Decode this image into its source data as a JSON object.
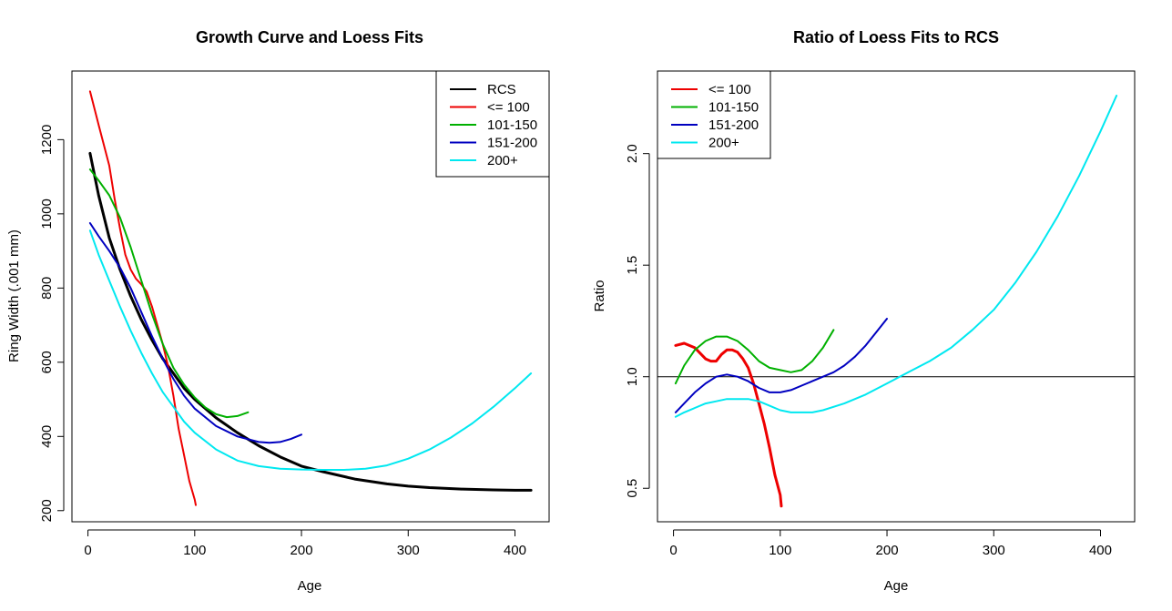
{
  "chart_data": [
    {
      "type": "line",
      "title": "Growth Curve and Loess Fits",
      "xlabel": "Age",
      "ylabel": "Ring Width (.001 mm)",
      "xlim": [
        -15,
        432
      ],
      "ylim": [
        170,
        1385
      ],
      "xticks": [
        0,
        100,
        200,
        300,
        400
      ],
      "yticks": [
        200,
        400,
        600,
        800,
        1000,
        1200
      ],
      "legend": "top-right",
      "series": [
        {
          "name": "RCS",
          "color": "#000000",
          "width": 3,
          "x": [
            2,
            10,
            20,
            30,
            40,
            50,
            60,
            70,
            80,
            90,
            100,
            120,
            140,
            160,
            180,
            200,
            220,
            250,
            280,
            300,
            320,
            350,
            380,
            400,
            415
          ],
          "y": [
            1163,
            1050,
            935,
            850,
            778,
            715,
            660,
            610,
            570,
            530,
            500,
            450,
            410,
            375,
            345,
            320,
            305,
            285,
            272,
            266,
            262,
            258,
            256,
            255,
            255
          ]
        },
        {
          "name": "<= 100",
          "color": "#ee0000",
          "width": 2,
          "x": [
            2,
            10,
            20,
            25,
            30,
            35,
            40,
            45,
            50,
            55,
            60,
            65,
            70,
            75,
            80,
            85,
            90,
            95,
            100,
            101
          ],
          "y": [
            1330,
            1240,
            1130,
            1040,
            960,
            890,
            850,
            825,
            810,
            790,
            750,
            700,
            650,
            590,
            510,
            420,
            350,
            280,
            230,
            215
          ]
        },
        {
          "name": "101-150",
          "color": "#00b000",
          "width": 2,
          "x": [
            2,
            10,
            20,
            30,
            40,
            50,
            60,
            70,
            80,
            90,
            100,
            110,
            120,
            130,
            140,
            150
          ],
          "y": [
            1120,
            1090,
            1050,
            990,
            910,
            820,
            730,
            650,
            585,
            540,
            505,
            478,
            460,
            452,
            455,
            465
          ]
        },
        {
          "name": "151-200",
          "color": "#0000c0",
          "width": 2,
          "x": [
            2,
            10,
            20,
            30,
            40,
            50,
            60,
            70,
            80,
            90,
            100,
            120,
            140,
            160,
            170,
            180,
            190,
            200
          ],
          "y": [
            975,
            940,
            900,
            855,
            800,
            735,
            670,
            610,
            555,
            510,
            475,
            428,
            400,
            385,
            383,
            385,
            393,
            405
          ]
        },
        {
          "name": "200+",
          "color": "#00e8f0",
          "width": 2,
          "x": [
            2,
            10,
            20,
            30,
            40,
            50,
            60,
            70,
            80,
            90,
            100,
            120,
            140,
            160,
            180,
            200,
            220,
            240,
            260,
            280,
            300,
            320,
            340,
            360,
            380,
            400,
            415
          ],
          "y": [
            955,
            890,
            820,
            750,
            685,
            625,
            570,
            520,
            480,
            440,
            410,
            365,
            335,
            320,
            313,
            311,
            310,
            310,
            313,
            322,
            340,
            365,
            397,
            435,
            480,
            530,
            570
          ]
        }
      ]
    },
    {
      "type": "line",
      "title": "Ratio of Loess Fits to RCS",
      "xlabel": "Age",
      "ylabel": "Ratio",
      "xlim": [
        -15,
        432
      ],
      "ylim": [
        0.35,
        2.37
      ],
      "xticks": [
        0,
        100,
        200,
        300,
        400
      ],
      "yticks": [
        0.5,
        1.0,
        1.5,
        2.0
      ],
      "ytick_labels": [
        "0.5",
        "1.0",
        "1.5",
        "2.0"
      ],
      "hline": 1.0,
      "legend": "top-left",
      "series": [
        {
          "name": "<= 100",
          "color": "#ee0000",
          "width": 3,
          "x": [
            2,
            10,
            20,
            30,
            35,
            40,
            45,
            50,
            55,
            60,
            65,
            70,
            75,
            80,
            85,
            90,
            95,
            100,
            101
          ],
          "y": [
            1.14,
            1.15,
            1.13,
            1.08,
            1.07,
            1.07,
            1.1,
            1.12,
            1.12,
            1.11,
            1.08,
            1.04,
            0.97,
            0.88,
            0.79,
            0.68,
            0.56,
            0.47,
            0.42
          ]
        },
        {
          "name": "101-150",
          "color": "#00b000",
          "width": 2,
          "x": [
            2,
            10,
            20,
            30,
            40,
            50,
            60,
            70,
            80,
            90,
            100,
            110,
            120,
            130,
            140,
            150
          ],
          "y": [
            0.97,
            1.05,
            1.12,
            1.16,
            1.18,
            1.18,
            1.16,
            1.12,
            1.07,
            1.04,
            1.03,
            1.02,
            1.03,
            1.07,
            1.13,
            1.21
          ]
        },
        {
          "name": "151-200",
          "color": "#0000c0",
          "width": 2,
          "x": [
            2,
            10,
            20,
            30,
            40,
            50,
            60,
            70,
            80,
            90,
            100,
            110,
            120,
            130,
            140,
            150,
            160,
            170,
            180,
            190,
            200
          ],
          "y": [
            0.84,
            0.88,
            0.93,
            0.97,
            1.0,
            1.01,
            1.0,
            0.98,
            0.95,
            0.93,
            0.93,
            0.94,
            0.96,
            0.98,
            1.0,
            1.02,
            1.05,
            1.09,
            1.14,
            1.2,
            1.26
          ]
        },
        {
          "name": "200+",
          "color": "#00e8f0",
          "width": 2,
          "x": [
            2,
            10,
            20,
            30,
            40,
            50,
            60,
            70,
            80,
            90,
            100,
            110,
            120,
            130,
            140,
            160,
            180,
            200,
            220,
            240,
            260,
            280,
            300,
            320,
            340,
            360,
            380,
            400,
            415
          ],
          "y": [
            0.82,
            0.84,
            0.86,
            0.88,
            0.89,
            0.9,
            0.9,
            0.9,
            0.89,
            0.87,
            0.85,
            0.84,
            0.84,
            0.84,
            0.85,
            0.88,
            0.92,
            0.97,
            1.02,
            1.07,
            1.13,
            1.21,
            1.3,
            1.42,
            1.56,
            1.72,
            1.9,
            2.1,
            2.26
          ]
        }
      ]
    }
  ]
}
